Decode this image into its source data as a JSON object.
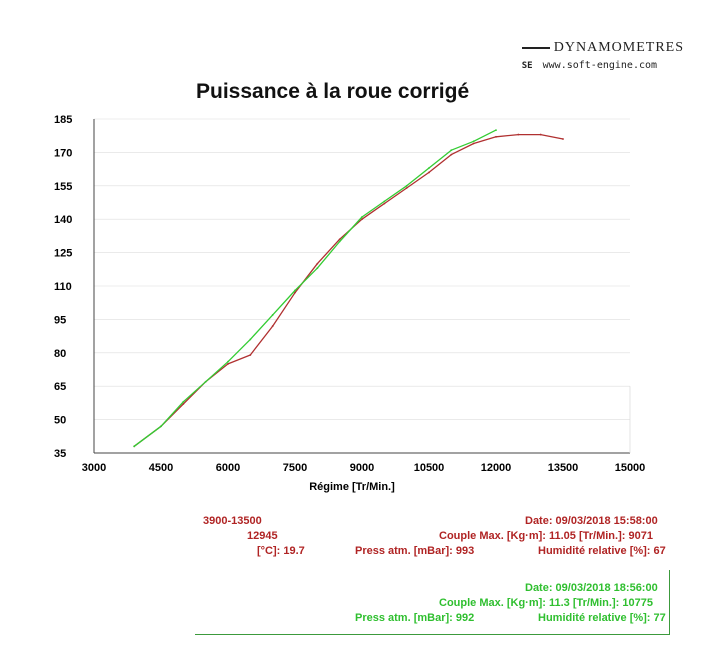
{
  "brand": {
    "name": "DYNAMOMETRES",
    "tag": "SE",
    "site": "www.soft-engine.com"
  },
  "colors": {
    "run1": "#b03030",
    "run2": "#33cc33",
    "grid": "#dddddd",
    "axis": "#444444"
  },
  "chart_data": {
    "type": "line",
    "title": "Puissance à la roue corrigé",
    "xlabel": "Régime [Tr/Min.]",
    "ylabel": "",
    "xlim": [
      3000,
      15000
    ],
    "ylim": [
      35,
      185
    ],
    "x_ticks": [
      "3000",
      "4500",
      "6000",
      "7500",
      "9000",
      "10500",
      "12000",
      "13500",
      "15000"
    ],
    "y_ticks": [
      "185",
      "170",
      "155",
      "140",
      "125",
      "110",
      "95",
      "80",
      "65",
      "50",
      "35"
    ],
    "grid": true,
    "series": [
      {
        "color": "#b03030",
        "x": [
          3900,
          4500,
          5000,
          5500,
          6000,
          6500,
          7000,
          7500,
          8000,
          8500,
          9000,
          9500,
          10000,
          10500,
          11000,
          11500,
          12000,
          12500,
          13000,
          13500
        ],
        "y": [
          38,
          47,
          57,
          67,
          75,
          79,
          92,
          107,
          120,
          131,
          140,
          147,
          154,
          161,
          169,
          174,
          177,
          178,
          178,
          176
        ]
      },
      {
        "color": "#33cc33",
        "x": [
          3900,
          4500,
          5000,
          5500,
          6000,
          6500,
          7000,
          7500,
          8000,
          8500,
          9000,
          9500,
          10000,
          10500,
          11000,
          11500,
          12000
        ],
        "y": [
          38,
          47,
          58,
          67,
          76,
          86,
          97,
          108,
          118,
          130,
          141,
          148,
          155,
          163,
          171,
          175,
          180
        ]
      }
    ]
  },
  "run1": {
    "rpm_range": "3900-13500",
    "power_rpm": "12945",
    "temp": "[°C]: 19.7",
    "date": "Date: 09/03/2018   15:58:00",
    "couple": "Couple Max. [Kg·m]: 11.05   [Tr/Min.]: 9071",
    "press": "Press atm. [mBar]: 993",
    "humid": "Humidité relative [%]: 67"
  },
  "run2": {
    "date": "Date: 09/03/2018   18:56:00",
    "couple": "Couple Max. [Kg·m]: 11.3   [Tr/Min.]: 10775",
    "press": "Press atm. [mBar]: 992",
    "humid": "Humidité relative [%]: 77"
  }
}
